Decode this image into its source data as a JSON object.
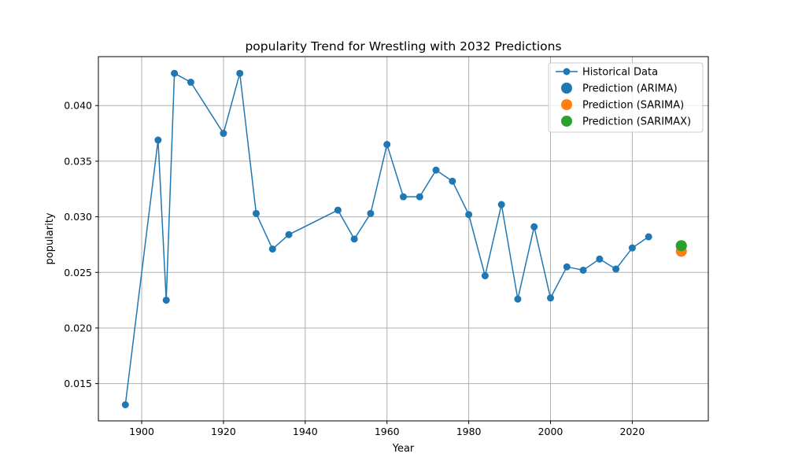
{
  "chart_data": {
    "type": "line",
    "title": "popularity Trend for Wrestling with 2032 Predictions",
    "xlabel": "Year",
    "ylabel": "popularity",
    "xlim": [
      1889.4,
      2038.6
    ],
    "ylim": [
      0.01165,
      0.0444
    ],
    "xticks": [
      1900,
      1920,
      1940,
      1960,
      1980,
      2000,
      2020
    ],
    "yticks": [
      0.015,
      0.02,
      0.025,
      0.03,
      0.035,
      0.04
    ],
    "ytick_labels": [
      "0.015",
      "0.020",
      "0.025",
      "0.030",
      "0.035",
      "0.040"
    ],
    "grid": true,
    "legend_position": "top-right",
    "series": [
      {
        "name": "Historical Data",
        "kind": "line-marker",
        "color": "#1f77b4",
        "x": [
          1896,
          1904,
          1906,
          1908,
          1912,
          1920,
          1924,
          1928,
          1932,
          1936,
          1948,
          1952,
          1956,
          1960,
          1964,
          1968,
          1972,
          1976,
          1980,
          1984,
          1988,
          1992,
          1996,
          2000,
          2004,
          2008,
          2012,
          2016,
          2020,
          2024
        ],
        "y": [
          0.0131,
          0.0369,
          0.0225,
          0.0429,
          0.0421,
          0.0375,
          0.0429,
          0.0303,
          0.0271,
          0.0284,
          0.0306,
          0.028,
          0.0303,
          0.0365,
          0.0318,
          0.0318,
          0.0342,
          0.0332,
          0.0302,
          0.0247,
          0.0311,
          0.0226,
          0.0291,
          0.0227,
          0.0255,
          0.0252,
          0.0262,
          0.0253,
          0.0272,
          0.0282
        ]
      },
      {
        "name": "Prediction (ARIMA)",
        "kind": "point",
        "color": "#1f77b4",
        "x": [
          2032
        ],
        "y": [
          0.0274
        ]
      },
      {
        "name": "Prediction (SARIMA)",
        "kind": "point",
        "color": "#ff7f0e",
        "x": [
          2032
        ],
        "y": [
          0.0269
        ]
      },
      {
        "name": "Prediction (SARIMAX)",
        "kind": "point",
        "color": "#2ca02c",
        "x": [
          2032
        ],
        "y": [
          0.0274
        ]
      }
    ]
  }
}
